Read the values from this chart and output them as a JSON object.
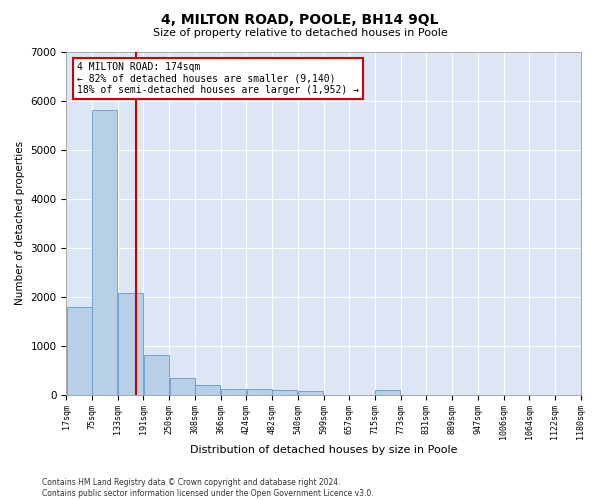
{
  "title": "4, MILTON ROAD, POOLE, BH14 9QL",
  "subtitle": "Size of property relative to detached houses in Poole",
  "xlabel": "Distribution of detached houses by size in Poole",
  "ylabel": "Number of detached properties",
  "bar_color": "#b8cfe8",
  "bar_edge_color": "#6699cc",
  "background_color": "#dce6f5",
  "grid_color": "#ffffff",
  "vline_value": 174,
  "vline_color": "#cc0000",
  "annotation_text": "4 MILTON ROAD: 174sqm\n← 82% of detached houses are smaller (9,140)\n18% of semi-detached houses are larger (1,952) →",
  "annotation_box_color": "#cc0000",
  "bin_starts": [
    17,
    75,
    133,
    191,
    250,
    308,
    366,
    424,
    482,
    540,
    599,
    657,
    715,
    773,
    831,
    889,
    947,
    1006,
    1064,
    1122
  ],
  "bin_width": 58,
  "bin_labels": [
    "17sqm",
    "75sqm",
    "133sqm",
    "191sqm",
    "250sqm",
    "308sqm",
    "366sqm",
    "424sqm",
    "482sqm",
    "540sqm",
    "599sqm",
    "657sqm",
    "715sqm",
    "773sqm",
    "831sqm",
    "889sqm",
    "947sqm",
    "1006sqm",
    "1064sqm",
    "1122sqm",
    "1180sqm"
  ],
  "bar_heights": [
    1780,
    5800,
    2080,
    810,
    340,
    200,
    120,
    110,
    90,
    75,
    0,
    0,
    90,
    0,
    0,
    0,
    0,
    0,
    0,
    0
  ],
  "ylim": [
    0,
    7000
  ],
  "yticks": [
    0,
    1000,
    2000,
    3000,
    4000,
    5000,
    6000,
    7000
  ],
  "xlim_left": 17,
  "xlim_right": 1180,
  "footer_line1": "Contains HM Land Registry data © Crown copyright and database right 2024.",
  "footer_line2": "Contains public sector information licensed under the Open Government Licence v3.0."
}
